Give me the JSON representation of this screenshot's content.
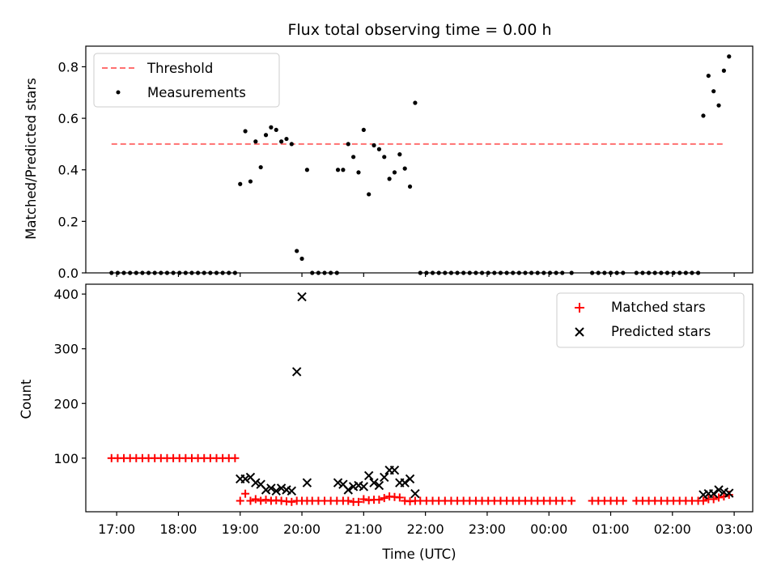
{
  "chart_data": [
    {
      "type": "scatter",
      "title": "Flux total observing time = 0.00 h",
      "xlabel": "",
      "ylabel": "Matched/Predicted stars",
      "ylim": [
        0,
        0.88
      ],
      "yticks": [
        0.0,
        0.2,
        0.4,
        0.6,
        0.8
      ],
      "ytick_labels": [
        "0.0",
        "0.2",
        "0.4",
        "0.6",
        "0.8"
      ],
      "legend_position": "top-left",
      "threshold": {
        "name": "Threshold",
        "value": 0.5,
        "x_start": "16:55",
        "x_end": "02:50",
        "color": "#ff7070"
      },
      "series": [
        {
          "name": "Measurements",
          "color": "#000000",
          "points": [
            [
              "16:55",
              0
            ],
            [
              "17:01",
              0
            ],
            [
              "17:07",
              0
            ],
            [
              "17:13",
              0
            ],
            [
              "17:19",
              0
            ],
            [
              "17:25",
              0
            ],
            [
              "17:31",
              0
            ],
            [
              "17:37",
              0
            ],
            [
              "17:43",
              0
            ],
            [
              "17:49",
              0
            ],
            [
              "17:55",
              0
            ],
            [
              "18:01",
              0
            ],
            [
              "18:07",
              0
            ],
            [
              "18:13",
              0
            ],
            [
              "18:19",
              0
            ],
            [
              "18:25",
              0
            ],
            [
              "18:31",
              0
            ],
            [
              "18:37",
              0
            ],
            [
              "18:43",
              0
            ],
            [
              "18:49",
              0
            ],
            [
              "18:55",
              0
            ],
            [
              "19:00",
              0.345
            ],
            [
              "19:05",
              0.55
            ],
            [
              "19:10",
              0.355
            ],
            [
              "19:15",
              0.51
            ],
            [
              "19:20",
              0.41
            ],
            [
              "19:25",
              0.535
            ],
            [
              "19:30",
              0.565
            ],
            [
              "19:35",
              0.555
            ],
            [
              "19:40",
              0.51
            ],
            [
              "19:45",
              0.52
            ],
            [
              "19:50",
              0.5
            ],
            [
              "19:55",
              0.085
            ],
            [
              "20:00",
              0.055
            ],
            [
              "20:05",
              0.4
            ],
            [
              "20:10",
              0
            ],
            [
              "20:16",
              0
            ],
            [
              "20:22",
              0
            ],
            [
              "20:28",
              0
            ],
            [
              "20:34",
              0
            ],
            [
              "20:35",
              0.4
            ],
            [
              "20:40",
              0.4
            ],
            [
              "20:45",
              0.5
            ],
            [
              "20:50",
              0.45
            ],
            [
              "20:55",
              0.39
            ],
            [
              "21:00",
              0.555
            ],
            [
              "21:05",
              0.305
            ],
            [
              "21:10",
              0.495
            ],
            [
              "21:15",
              0.48
            ],
            [
              "21:20",
              0.45
            ],
            [
              "21:25",
              0.365
            ],
            [
              "21:30",
              0.39
            ],
            [
              "21:35",
              0.46
            ],
            [
              "21:40",
              0.405
            ],
            [
              "21:45",
              0.335
            ],
            [
              "21:50",
              0.66
            ],
            [
              "21:55",
              0
            ],
            [
              "22:01",
              0
            ],
            [
              "22:07",
              0
            ],
            [
              "22:13",
              0
            ],
            [
              "22:19",
              0
            ],
            [
              "22:25",
              0
            ],
            [
              "22:31",
              0
            ],
            [
              "22:37",
              0
            ],
            [
              "22:43",
              0
            ],
            [
              "22:49",
              0
            ],
            [
              "22:55",
              0
            ],
            [
              "23:01",
              0
            ],
            [
              "23:07",
              0
            ],
            [
              "23:13",
              0
            ],
            [
              "23:19",
              0
            ],
            [
              "23:25",
              0
            ],
            [
              "23:31",
              0
            ],
            [
              "23:37",
              0
            ],
            [
              "23:43",
              0
            ],
            [
              "23:49",
              0
            ],
            [
              "23:55",
              0
            ],
            [
              "00:01",
              0
            ],
            [
              "00:07",
              0
            ],
            [
              "00:13",
              0
            ],
            [
              "00:22",
              0
            ],
            [
              "00:42",
              0
            ],
            [
              "00:48",
              0
            ],
            [
              "00:54",
              0
            ],
            [
              "01:00",
              0
            ],
            [
              "01:06",
              0
            ],
            [
              "01:12",
              0
            ],
            [
              "01:25",
              0
            ],
            [
              "01:31",
              0
            ],
            [
              "01:37",
              0
            ],
            [
              "01:43",
              0
            ],
            [
              "01:49",
              0
            ],
            [
              "01:55",
              0
            ],
            [
              "02:01",
              0
            ],
            [
              "02:07",
              0
            ],
            [
              "02:13",
              0
            ],
            [
              "02:19",
              0
            ],
            [
              "02:25",
              0
            ],
            [
              "02:30",
              0.61
            ],
            [
              "02:35",
              0.765
            ],
            [
              "02:40",
              0.705
            ],
            [
              "02:45",
              0.65
            ],
            [
              "02:50",
              0.785
            ],
            [
              "02:55",
              0.84
            ]
          ]
        }
      ]
    },
    {
      "type": "scatter",
      "title": "",
      "xlabel": "Time (UTC)",
      "ylabel": "Count",
      "ylim": [
        2,
        418
      ],
      "yticks": [
        100,
        200,
        300,
        400
      ],
      "ytick_labels": [
        "100",
        "200",
        "300",
        "400"
      ],
      "xticks": [
        "17:00",
        "18:00",
        "19:00",
        "20:00",
        "21:00",
        "22:00",
        "23:00",
        "00:00",
        "01:00",
        "02:00",
        "03:00"
      ],
      "xtick_labels": [
        "17:00",
        "18:00",
        "19:00",
        "20:00",
        "21:00",
        "22:00",
        "23:00",
        "00:00",
        "01:00",
        "02:00",
        "03:00"
      ],
      "legend_position": "top-right",
      "series": [
        {
          "name": "Matched stars",
          "marker": "+",
          "color": "#ff0000",
          "points": [
            [
              "16:55",
              100
            ],
            [
              "17:01",
              100
            ],
            [
              "17:07",
              100
            ],
            [
              "17:13",
              100
            ],
            [
              "17:19",
              100
            ],
            [
              "17:25",
              100
            ],
            [
              "17:31",
              100
            ],
            [
              "17:37",
              100
            ],
            [
              "17:43",
              100
            ],
            [
              "17:49",
              100
            ],
            [
              "17:55",
              100
            ],
            [
              "18:01",
              100
            ],
            [
              "18:07",
              100
            ],
            [
              "18:13",
              100
            ],
            [
              "18:19",
              100
            ],
            [
              "18:25",
              100
            ],
            [
              "18:31",
              100
            ],
            [
              "18:37",
              100
            ],
            [
              "18:43",
              100
            ],
            [
              "18:49",
              100
            ],
            [
              "18:55",
              100
            ],
            [
              "19:00",
              22
            ],
            [
              "19:05",
              35
            ],
            [
              "19:10",
              22
            ],
            [
              "19:15",
              25
            ],
            [
              "19:20",
              22
            ],
            [
              "19:25",
              24
            ],
            [
              "19:30",
              22
            ],
            [
              "19:35",
              23
            ],
            [
              "19:40",
              22
            ],
            [
              "19:45",
              21
            ],
            [
              "19:50",
              20
            ],
            [
              "19:55",
              22
            ],
            [
              "20:00",
              22
            ],
            [
              "20:05",
              22
            ],
            [
              "20:10",
              22
            ],
            [
              "20:16",
              22
            ],
            [
              "20:22",
              22
            ],
            [
              "20:28",
              22
            ],
            [
              "20:34",
              22
            ],
            [
              "20:40",
              22
            ],
            [
              "20:45",
              22
            ],
            [
              "20:50",
              20
            ],
            [
              "20:55",
              20
            ],
            [
              "21:00",
              25
            ],
            [
              "21:05",
              23
            ],
            [
              "21:10",
              24
            ],
            [
              "21:15",
              24
            ],
            [
              "21:20",
              27
            ],
            [
              "21:25",
              30
            ],
            [
              "21:30",
              29
            ],
            [
              "21:35",
              28
            ],
            [
              "21:40",
              22
            ],
            [
              "21:45",
              21
            ],
            [
              "21:50",
              22
            ],
            [
              "21:55",
              22
            ],
            [
              "22:01",
              22
            ],
            [
              "22:07",
              22
            ],
            [
              "22:13",
              22
            ],
            [
              "22:19",
              22
            ],
            [
              "22:25",
              22
            ],
            [
              "22:31",
              22
            ],
            [
              "22:37",
              22
            ],
            [
              "22:43",
              22
            ],
            [
              "22:49",
              22
            ],
            [
              "22:55",
              22
            ],
            [
              "23:01",
              22
            ],
            [
              "23:07",
              22
            ],
            [
              "23:13",
              22
            ],
            [
              "23:19",
              22
            ],
            [
              "23:25",
              22
            ],
            [
              "23:31",
              22
            ],
            [
              "23:37",
              22
            ],
            [
              "23:43",
              22
            ],
            [
              "23:49",
              22
            ],
            [
              "23:55",
              22
            ],
            [
              "00:01",
              22
            ],
            [
              "00:07",
              22
            ],
            [
              "00:13",
              22
            ],
            [
              "00:22",
              22
            ],
            [
              "00:42",
              22
            ],
            [
              "00:48",
              22
            ],
            [
              "00:54",
              22
            ],
            [
              "01:00",
              22
            ],
            [
              "01:06",
              22
            ],
            [
              "01:12",
              22
            ],
            [
              "01:25",
              22
            ],
            [
              "01:31",
              22
            ],
            [
              "01:37",
              22
            ],
            [
              "01:43",
              22
            ],
            [
              "01:49",
              22
            ],
            [
              "01:55",
              22
            ],
            [
              "02:01",
              22
            ],
            [
              "02:07",
              22
            ],
            [
              "02:13",
              22
            ],
            [
              "02:19",
              22
            ],
            [
              "02:25",
              22
            ],
            [
              "02:30",
              22
            ],
            [
              "02:35",
              25
            ],
            [
              "02:40",
              25
            ],
            [
              "02:45",
              28
            ],
            [
              "02:50",
              30
            ],
            [
              "02:55",
              33
            ]
          ]
        },
        {
          "name": "Predicted stars",
          "marker": "x",
          "color": "#000000",
          "points": [
            [
              "19:00",
              62
            ],
            [
              "19:05",
              62
            ],
            [
              "19:10",
              65
            ],
            [
              "19:15",
              55
            ],
            [
              "19:20",
              52
            ],
            [
              "19:25",
              42
            ],
            [
              "19:30",
              45
            ],
            [
              "19:35",
              40
            ],
            [
              "19:40",
              45
            ],
            [
              "19:45",
              42
            ],
            [
              "19:50",
              40
            ],
            [
              "19:55",
              258
            ],
            [
              "20:00",
              395
            ],
            [
              "20:05",
              55
            ],
            [
              "20:35",
              55
            ],
            [
              "20:40",
              52
            ],
            [
              "20:45",
              42
            ],
            [
              "20:50",
              48
            ],
            [
              "20:55",
              50
            ],
            [
              "21:00",
              48
            ],
            [
              "21:05",
              68
            ],
            [
              "21:10",
              55
            ],
            [
              "21:15",
              50
            ],
            [
              "21:20",
              65
            ],
            [
              "21:25",
              78
            ],
            [
              "21:30",
              78
            ],
            [
              "21:35",
              55
            ],
            [
              "21:40",
              55
            ],
            [
              "21:45",
              62
            ],
            [
              "21:50",
              35
            ],
            [
              "02:30",
              33
            ],
            [
              "02:35",
              35
            ],
            [
              "02:40",
              35
            ],
            [
              "02:45",
              42
            ],
            [
              "02:50",
              38
            ],
            [
              "02:55",
              36
            ]
          ]
        }
      ]
    }
  ]
}
